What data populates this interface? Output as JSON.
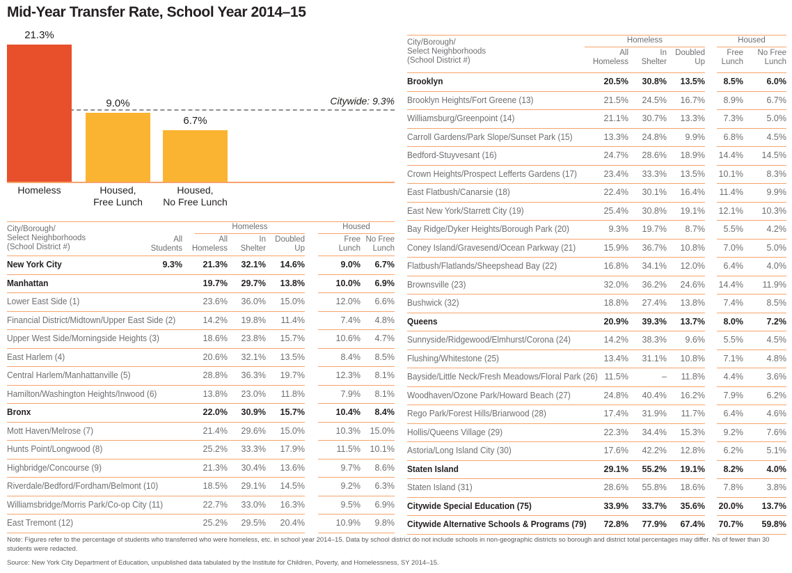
{
  "title": "Mid-Year Transfer Rate, School Year 2014–15",
  "colors": {
    "homeless_bar": "#E8502B",
    "housed_bar": "#FBB431",
    "table_rule": "#F6A36A",
    "axis_line": "#F6A36A",
    "reference_line": "#8A8D90",
    "bold_text": "#231F20",
    "body_text": "#6D6E71",
    "note_text": "#58595B"
  },
  "chart_data": {
    "type": "bar",
    "title": "Mid-Year Transfer Rate, School Year 2014–15",
    "categories": [
      "Homeless",
      "Housed,\nFree Lunch",
      "Housed,\nNo Free Lunch"
    ],
    "values": [
      21.3,
      9.0,
      6.7
    ],
    "value_labels": [
      "21.3%",
      "9.0%",
      "6.7%"
    ],
    "bar_colors": [
      "#E8502B",
      "#FBB431",
      "#FBB431"
    ],
    "reference_line": {
      "label": "Citywide: 9.3%",
      "value": 9.3
    },
    "xlabel": "",
    "ylabel": "",
    "ylim": [
      0,
      22
    ],
    "grid": false,
    "legend": false
  },
  "table_left": {
    "header": {
      "label": "City/Borough/\nSelect Neighborhoods\n(School District #)",
      "all_students": "All\nStudents",
      "group_homeless": "Homeless",
      "group_housed": "Housed",
      "cols": [
        "All\nHomeless",
        "In\nShelter",
        "Doubled\nUp",
        "Free\nLunch",
        "No Free\nLunch"
      ]
    },
    "rows": [
      {
        "label": "New York City",
        "bold": true,
        "all_students": "9.3%",
        "values": [
          "21.3%",
          "32.1%",
          "14.6%",
          "9.0%",
          "6.7%"
        ]
      },
      {
        "label": "Manhattan",
        "bold": true,
        "all_students": "",
        "values": [
          "19.7%",
          "29.7%",
          "13.8%",
          "10.0%",
          "6.9%"
        ]
      },
      {
        "label": "Lower East Side (1)",
        "bold": false,
        "all_students": "",
        "values": [
          "23.6%",
          "36.0%",
          "15.0%",
          "12.0%",
          "6.6%"
        ]
      },
      {
        "label": "Financial District/Midtown/Upper East Side (2)",
        "bold": false,
        "all_students": "",
        "values": [
          "14.2%",
          "19.8%",
          "11.4%",
          "7.4%",
          "4.8%"
        ]
      },
      {
        "label": "Upper West Side/Morningside Heights (3)",
        "bold": false,
        "all_students": "",
        "values": [
          "18.6%",
          "23.8%",
          "15.7%",
          "10.6%",
          "4.7%"
        ]
      },
      {
        "label": "East Harlem (4)",
        "bold": false,
        "all_students": "",
        "values": [
          "20.6%",
          "32.1%",
          "13.5%",
          "8.4%",
          "8.5%"
        ]
      },
      {
        "label": "Central Harlem/Manhattanville (5)",
        "bold": false,
        "all_students": "",
        "values": [
          "28.8%",
          "36.3%",
          "19.7%",
          "12.3%",
          "8.1%"
        ]
      },
      {
        "label": "Hamilton/Washington Heights/Inwood (6)",
        "bold": false,
        "all_students": "",
        "values": [
          "13.8%",
          "23.0%",
          "11.8%",
          "7.9%",
          "8.1%"
        ]
      },
      {
        "label": "Bronx",
        "bold": true,
        "all_students": "",
        "values": [
          "22.0%",
          "30.9%",
          "15.7%",
          "10.4%",
          "8.4%"
        ]
      },
      {
        "label": "Mott Haven/Melrose (7)",
        "bold": false,
        "all_students": "",
        "values": [
          "21.4%",
          "29.6%",
          "15.0%",
          "10.3%",
          "15.0%"
        ]
      },
      {
        "label": "Hunts Point/Longwood (8)",
        "bold": false,
        "all_students": "",
        "values": [
          "25.2%",
          "33.3%",
          "17.9%",
          "11.5%",
          "10.1%"
        ]
      },
      {
        "label": "Highbridge/Concourse (9)",
        "bold": false,
        "all_students": "",
        "values": [
          "21.3%",
          "30.4%",
          "13.6%",
          "9.7%",
          "8.6%"
        ]
      },
      {
        "label": "Riverdale/Bedford/Fordham/Belmont (10)",
        "bold": false,
        "all_students": "",
        "values": [
          "18.5%",
          "29.1%",
          "14.5%",
          "9.2%",
          "6.3%"
        ]
      },
      {
        "label": "Williamsbridge/Morris Park/Co-op City (11)",
        "bold": false,
        "all_students": "",
        "values": [
          "22.7%",
          "33.0%",
          "16.3%",
          "9.5%",
          "6.9%"
        ]
      },
      {
        "label": "East Tremont (12)",
        "bold": false,
        "all_students": "",
        "values": [
          "25.2%",
          "29.5%",
          "20.4%",
          "10.9%",
          "9.8%"
        ]
      }
    ]
  },
  "table_right": {
    "header": {
      "label": "City/Borough/\nSelect Neighborhoods\n(School District #)",
      "group_homeless": "Homeless",
      "group_housed": "Housed",
      "cols": [
        "All\nHomeless",
        "In\nShelter",
        "Doubled\nUp",
        "Free\nLunch",
        "No Free\nLunch"
      ]
    },
    "rows": [
      {
        "label": "Brooklyn",
        "bold": true,
        "values": [
          "20.5%",
          "30.8%",
          "13.5%",
          "8.5%",
          "6.0%"
        ]
      },
      {
        "label": "Brooklyn Heights/Fort Greene (13)",
        "bold": false,
        "values": [
          "21.5%",
          "24.5%",
          "16.7%",
          "8.9%",
          "6.7%"
        ]
      },
      {
        "label": "Williamsburg/Greenpoint (14)",
        "bold": false,
        "values": [
          "21.1%",
          "30.7%",
          "13.3%",
          "7.3%",
          "5.0%"
        ]
      },
      {
        "label": "Carroll Gardens/Park Slope/Sunset Park (15)",
        "bold": false,
        "values": [
          "13.3%",
          "24.8%",
          "9.9%",
          "6.8%",
          "4.5%"
        ]
      },
      {
        "label": "Bedford-Stuyvesant (16)",
        "bold": false,
        "values": [
          "24.7%",
          "28.6%",
          "18.9%",
          "14.4%",
          "14.5%"
        ]
      },
      {
        "label": "Crown Heights/Prospect Lefferts Gardens (17)",
        "bold": false,
        "values": [
          "23.4%",
          "33.3%",
          "13.5%",
          "10.1%",
          "8.3%"
        ]
      },
      {
        "label": "East Flatbush/Canarsie (18)",
        "bold": false,
        "values": [
          "22.4%",
          "30.1%",
          "16.4%",
          "11.4%",
          "9.9%"
        ]
      },
      {
        "label": "East New York/Starrett City (19)",
        "bold": false,
        "values": [
          "25.4%",
          "30.8%",
          "19.1%",
          "12.1%",
          "10.3%"
        ]
      },
      {
        "label": "Bay Ridge/Dyker Heights/Borough Park (20)",
        "bold": false,
        "values": [
          "9.3%",
          "19.7%",
          "8.7%",
          "5.5%",
          "4.2%"
        ]
      },
      {
        "label": "Coney Island/Gravesend/Ocean Parkway (21)",
        "bold": false,
        "values": [
          "15.9%",
          "36.7%",
          "10.8%",
          "7.0%",
          "5.0%"
        ]
      },
      {
        "label": "Flatbush/Flatlands/Sheepshead Bay (22)",
        "bold": false,
        "values": [
          "16.8%",
          "34.1%",
          "12.0%",
          "6.4%",
          "4.0%"
        ]
      },
      {
        "label": "Brownsville (23)",
        "bold": false,
        "values": [
          "32.0%",
          "36.2%",
          "24.6%",
          "14.4%",
          "11.9%"
        ]
      },
      {
        "label": "Bushwick (32)",
        "bold": false,
        "values": [
          "18.8%",
          "27.4%",
          "13.8%",
          "7.4%",
          "8.5%"
        ]
      },
      {
        "label": "Queens",
        "bold": true,
        "values": [
          "20.9%",
          "39.3%",
          "13.7%",
          "8.0%",
          "7.2%"
        ]
      },
      {
        "label": "Sunnyside/Ridgewood/Elmhurst/Corona (24)",
        "bold": false,
        "values": [
          "14.2%",
          "38.3%",
          "9.6%",
          "5.5%",
          "4.5%"
        ]
      },
      {
        "label": "Flushing/Whitestone (25)",
        "bold": false,
        "values": [
          "13.4%",
          "31.1%",
          "10.8%",
          "7.1%",
          "4.8%"
        ]
      },
      {
        "label": "Bayside/Little Neck/Fresh Meadows/Floral Park (26)",
        "bold": false,
        "values": [
          "11.5%",
          "–",
          "11.8%",
          "4.4%",
          "3.6%"
        ]
      },
      {
        "label": "Woodhaven/Ozone Park/Howard Beach (27)",
        "bold": false,
        "values": [
          "24.8%",
          "40.4%",
          "16.2%",
          "7.9%",
          "6.2%"
        ]
      },
      {
        "label": "Rego Park/Forest Hills/Briarwood (28)",
        "bold": false,
        "values": [
          "17.4%",
          "31.9%",
          "11.7%",
          "6.4%",
          "4.6%"
        ]
      },
      {
        "label": "Hollis/Queens Village (29)",
        "bold": false,
        "values": [
          "22.3%",
          "34.4%",
          "15.3%",
          "9.2%",
          "7.6%"
        ]
      },
      {
        "label": "Astoria/Long Island City (30)",
        "bold": false,
        "values": [
          "17.6%",
          "42.2%",
          "12.8%",
          "6.2%",
          "5.1%"
        ]
      },
      {
        "label": "Staten Island",
        "bold": true,
        "values": [
          "29.1%",
          "55.2%",
          "19.1%",
          "8.2%",
          "4.0%"
        ]
      },
      {
        "label": "Staten Island (31)",
        "bold": false,
        "values": [
          "28.6%",
          "55.8%",
          "18.6%",
          "7.8%",
          "3.8%"
        ]
      },
      {
        "label": "Citywide Special Education (75)",
        "bold": true,
        "values": [
          "33.9%",
          "33.7%",
          "35.6%",
          "20.0%",
          "13.7%"
        ]
      },
      {
        "label": "Citywide Alternative Schools & Programs (79)",
        "bold": true,
        "values": [
          "72.8%",
          "77.9%",
          "67.4%",
          "70.7%",
          "59.8%"
        ]
      }
    ]
  },
  "notes": {
    "note": "Note: Figures refer to the percentage of students who transferred who were homeless, etc. in school year 2014–15. Data by school district do not include schools in non-geographic districts so borough and district total percentages may differ. Ns of fewer than 30 students were redacted.",
    "source": "Source: New York City Department of Education, unpublished data tabulated by the Institute for Children, Poverty, and Homelessness, SY 2014–15."
  }
}
